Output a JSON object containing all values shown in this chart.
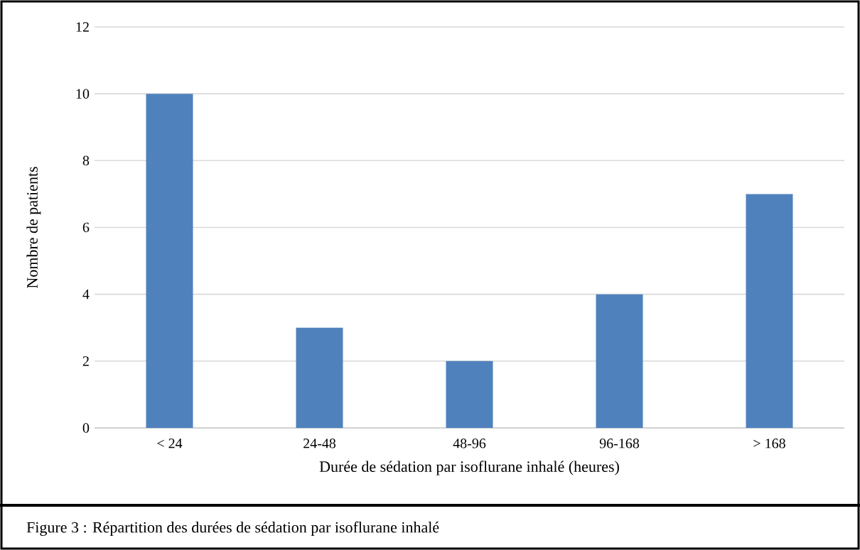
{
  "chart_data": {
    "type": "bar",
    "xlabel": "Durée de sédation par isoflurane inhalé (heures)",
    "ylabel": "Nombre de patients",
    "categories": [
      "< 24",
      "24-48",
      "48-96",
      "96-168",
      "> 168"
    ],
    "values": [
      10,
      3,
      2,
      4,
      7
    ],
    "color": "#4f81bd",
    "ylim": [
      0,
      12
    ],
    "yticks": [
      0,
      2,
      4,
      6,
      8,
      10,
      12
    ],
    "grid": "y",
    "annotations": [
      "Figure 3 : Répartition des durées de sédation par isoflurane inhalé"
    ]
  }
}
